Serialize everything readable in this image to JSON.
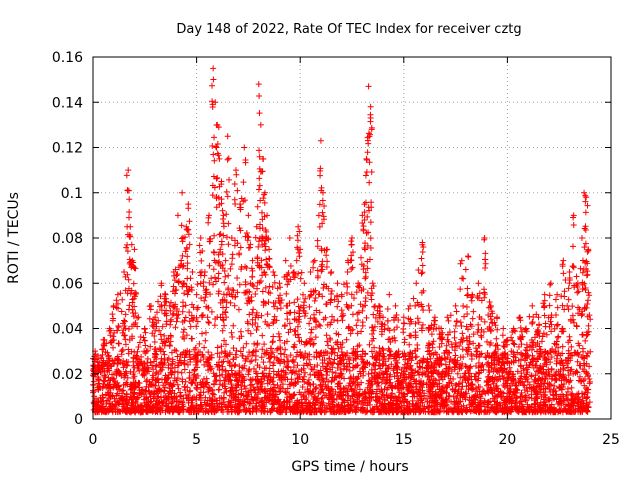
{
  "chart_data": {
    "type": "scatter",
    "title": "Day 148 of 2022, Rate Of TEC Index for receiver cztg",
    "xlabel": "GPS time / hours",
    "ylabel": "ROTI / TECUs",
    "xlim": [
      0,
      25
    ],
    "ylim": [
      0,
      0.16
    ],
    "xticks": [
      0,
      5,
      10,
      15,
      20,
      25
    ],
    "yticks": [
      0,
      0.02,
      0.04,
      0.06,
      0.08,
      0.1,
      0.12,
      0.14,
      0.16
    ],
    "xtick_labels": [
      "0",
      "5",
      "10",
      "15",
      "20",
      "25"
    ],
    "ytick_labels": [
      "0",
      "0.02",
      "0.04",
      "0.06",
      "0.08",
      "0.1",
      "0.12",
      "0.14",
      "0.16"
    ],
    "grid": true,
    "marker": "+",
    "marker_color": "#ff0000",
    "series": [
      {
        "name": "ROTI",
        "x": [
          0.1,
          0.3,
          0.5,
          0.8,
          1.0,
          1.2,
          1.5,
          1.7,
          1.8,
          1.9,
          2.0,
          2.2,
          2.5,
          2.8,
          3.0,
          3.3,
          3.5,
          3.7,
          3.9,
          4.1,
          4.3,
          4.4,
          4.5,
          4.6,
          4.8,
          5.0,
          5.2,
          5.4,
          5.6,
          5.8,
          5.9,
          6.0,
          6.1,
          6.2,
          6.3,
          6.4,
          6.5,
          6.7,
          6.9,
          7.1,
          7.3,
          7.5,
          7.7,
          7.9,
          8.0,
          8.1,
          8.2,
          8.3,
          8.4,
          8.5,
          8.7,
          9.0,
          9.3,
          9.5,
          9.7,
          9.9,
          10.0,
          10.2,
          10.5,
          10.7,
          10.9,
          11.0,
          11.1,
          11.3,
          11.5,
          11.8,
          12.0,
          12.3,
          12.5,
          12.8,
          13.0,
          13.1,
          13.2,
          13.3,
          13.4,
          13.5,
          13.8,
          14.0,
          14.3,
          14.6,
          15.0,
          15.3,
          15.6,
          15.9,
          16.2,
          16.5,
          16.8,
          17.1,
          17.5,
          17.8,
          18.1,
          18.3,
          18.6,
          18.9,
          19.2,
          19.5,
          19.8,
          20.0,
          20.3,
          20.6,
          20.9,
          21.2,
          21.5,
          21.8,
          22.1,
          22.4,
          22.7,
          23.0,
          23.2,
          23.4,
          23.6,
          23.7,
          23.8,
          23.9
        ],
        "y": [
          0.03,
          0.025,
          0.035,
          0.04,
          0.05,
          0.055,
          0.065,
          0.11,
          0.085,
          0.07,
          0.075,
          0.045,
          0.04,
          0.05,
          0.045,
          0.06,
          0.055,
          0.05,
          0.065,
          0.09,
          0.1,
          0.06,
          0.085,
          0.095,
          0.065,
          0.055,
          0.08,
          0.065,
          0.09,
          0.155,
          0.14,
          0.13,
          0.115,
          0.105,
          0.09,
          0.07,
          0.125,
          0.08,
          0.11,
          0.095,
          0.12,
          0.09,
          0.07,
          0.085,
          0.148,
          0.13,
          0.115,
          0.1,
          0.09,
          0.075,
          0.065,
          0.06,
          0.07,
          0.08,
          0.065,
          0.085,
          0.075,
          0.06,
          0.065,
          0.07,
          0.09,
          0.123,
          0.1,
          0.075,
          0.065,
          0.06,
          0.055,
          0.07,
          0.08,
          0.06,
          0.09,
          0.095,
          0.115,
          0.147,
          0.138,
          0.06,
          0.05,
          0.045,
          0.055,
          0.05,
          0.045,
          0.05,
          0.06,
          0.078,
          0.05,
          0.045,
          0.04,
          0.045,
          0.05,
          0.07,
          0.072,
          0.055,
          0.06,
          0.08,
          0.05,
          0.045,
          0.04,
          0.035,
          0.04,
          0.045,
          0.04,
          0.05,
          0.045,
          0.055,
          0.06,
          0.055,
          0.07,
          0.065,
          0.09,
          0.06,
          0.08,
          0.1,
          0.098,
          0.075
        ],
        "baseline_band": [
          0.003,
          0.03
        ]
      }
    ]
  }
}
